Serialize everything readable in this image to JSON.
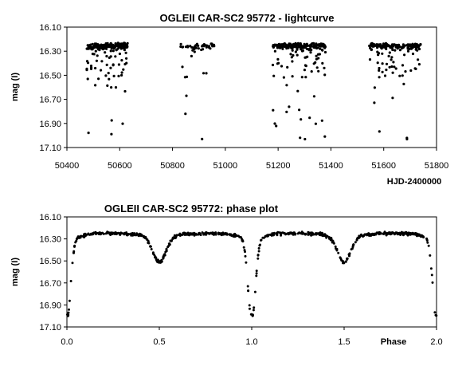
{
  "chart_data": [
    {
      "type": "scatter",
      "title": "OGLEII CAR-SC2 95772 - lightcurve",
      "xlabel": "HJD-2400000",
      "ylabel": "mag (I)",
      "xlim": [
        50400,
        51800
      ],
      "ylim": [
        17.1,
        16.1
      ],
      "y_inverted": true,
      "xticks": [
        "50400",
        "50600",
        "50800",
        "51000",
        "51200",
        "51400",
        "51600",
        "51800"
      ],
      "yticks": [
        "16.10",
        "16.30",
        "16.50",
        "16.70",
        "16.90",
        "17.10"
      ],
      "grid": false,
      "legend": "none",
      "marker_color": "#000000",
      "seasons": [
        {
          "x_start": 50475,
          "x_end": 50630,
          "n_points": 230
        },
        {
          "x_start": 50830,
          "x_end": 50960,
          "n_points": 50
        },
        {
          "x_start": 51180,
          "x_end": 51380,
          "n_points": 230
        },
        {
          "x_start": 51545,
          "x_end": 51740,
          "n_points": 180
        }
      ],
      "magnitude_model": {
        "max": 16.25,
        "secondary_min": 16.48,
        "primary_min": 16.99
      }
    },
    {
      "type": "scatter",
      "title": "OGLEII CAR-SC2 95772: phase plot",
      "xlabel": "Phase",
      "ylabel": "mag (I)",
      "xlim": [
        0.0,
        2.0
      ],
      "ylim": [
        17.1,
        16.1
      ],
      "y_inverted": true,
      "xticks": [
        "0.0",
        "0.5",
        "1.0",
        "1.5",
        "2.0"
      ],
      "yticks": [
        "16.10",
        "16.30",
        "16.50",
        "16.70",
        "16.90",
        "17.10"
      ],
      "grid": false,
      "legend": "none",
      "marker_color": "#000000",
      "n_points": 700,
      "magnitude_model": {
        "max": 16.25,
        "secondary_min": 16.48,
        "primary_min": 16.99
      }
    }
  ]
}
